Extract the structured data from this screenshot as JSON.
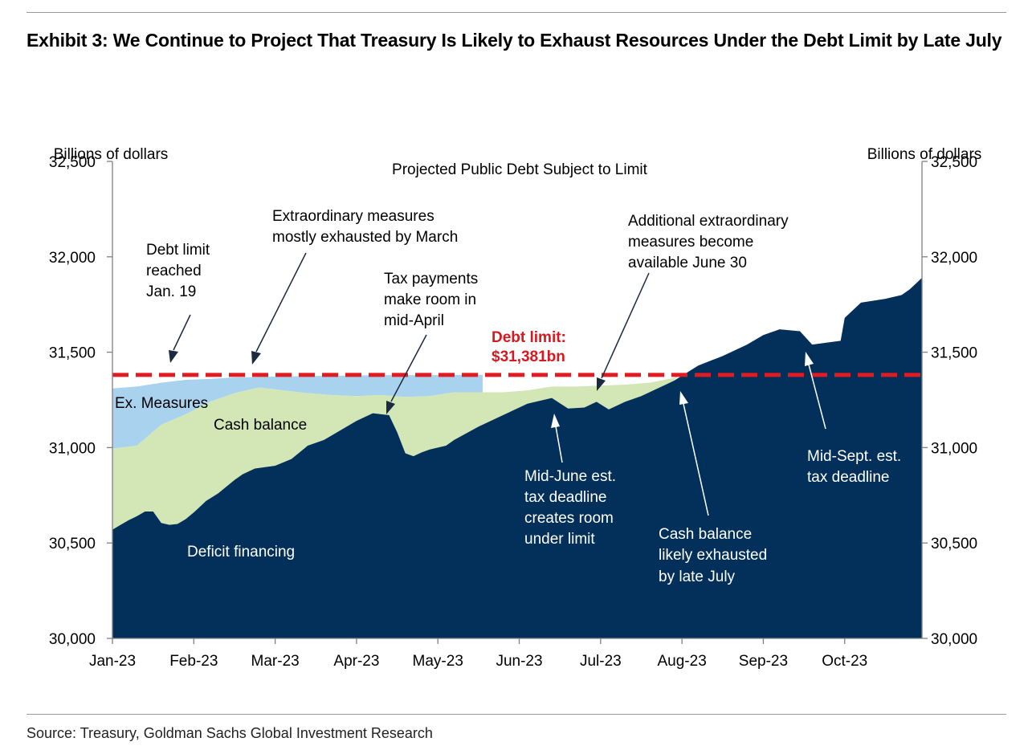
{
  "exhibit_title": "Exhibit 3: We Continue to Project That Treasury Is Likely to Exhaust Resources Under the Debt Limit by Late July",
  "source": "Source: Treasury, Goldman Sachs Global Investment Research",
  "colors": {
    "deficit": "#03305a",
    "cash": "#d2e7b5",
    "ex_measures": "#a9d2ef",
    "limit_line": "#e01b22",
    "limit_label": "#d7191f",
    "axis": "#808080"
  },
  "chart_data": {
    "type": "area",
    "title": "Projected Public Debt Subject to Limit",
    "ylabel_left": "Billions of dollars",
    "ylabel_right": "Billions of dollars",
    "ylim": [
      30000,
      32500
    ],
    "y_ticks": [
      30000,
      30500,
      31000,
      31500,
      32000,
      32500
    ],
    "y_tick_labels": [
      "30,000",
      "30,500",
      "31,000",
      "31,500",
      "32,000",
      "32,500"
    ],
    "x_tick_labels": [
      "Jan-23",
      "Feb-23",
      "Mar-23",
      "Apr-23",
      "May-23",
      "Jun-23",
      "Jul-23",
      "Aug-23",
      "Sep-23",
      "Oct-23"
    ],
    "x_unit": "months since Jan 1, 2023",
    "xlim": [
      0,
      9.95
    ],
    "debt_limit": {
      "value": 31381,
      "label_line1": "Debt limit:",
      "label_line2": "$31,381bn"
    },
    "series": [
      {
        "name": "Deficit financing",
        "x": [
          0,
          0.1,
          0.2,
          0.3,
          0.4,
          0.5,
          0.6,
          0.7,
          0.8,
          0.9,
          1.0,
          1.15,
          1.3,
          1.5,
          1.6,
          1.75,
          2.0,
          2.2,
          2.4,
          2.6,
          2.8,
          3.0,
          3.2,
          3.4,
          3.5,
          3.6,
          3.7,
          3.8,
          3.9,
          4.0,
          4.1,
          4.2,
          4.5,
          4.8,
          5.1,
          5.4,
          5.6,
          5.8,
          5.95,
          6.1,
          6.3,
          6.5,
          6.7,
          6.9,
          7.2,
          7.5,
          7.8,
          8.0,
          8.2,
          8.45,
          8.6,
          8.95,
          9.0,
          9.2,
          9.5,
          9.7,
          9.8,
          9.95
        ],
        "values": [
          30570,
          30595,
          30620,
          30640,
          30665,
          30665,
          30605,
          30595,
          30600,
          30625,
          30660,
          30720,
          30760,
          30830,
          30860,
          30890,
          30905,
          30940,
          31010,
          31040,
          31090,
          31140,
          31180,
          31170,
          31080,
          30970,
          30955,
          30975,
          30990,
          31000,
          31010,
          31040,
          31110,
          31170,
          31230,
          31260,
          31205,
          31210,
          31240,
          31200,
          31240,
          31270,
          31310,
          31350,
          31430,
          31480,
          31540,
          31590,
          31620,
          31610,
          31540,
          31560,
          31680,
          31760,
          31780,
          31800,
          31830,
          31890
        ]
      },
      {
        "name": "Cash balance",
        "x": [
          0,
          0.3,
          0.6,
          0.9,
          1.2,
          1.5,
          1.8,
          2.1,
          2.4,
          2.7,
          3.0,
          3.3,
          3.6,
          3.9,
          4.2,
          4.5,
          4.8,
          5.1,
          5.4,
          5.7,
          6.0,
          6.3,
          6.6,
          6.9,
          6.96
        ],
        "values": [
          30995,
          31010,
          31120,
          31175,
          31240,
          31285,
          31315,
          31300,
          31285,
          31275,
          31270,
          31275,
          31265,
          31270,
          31290,
          31290,
          31290,
          31300,
          31320,
          31320,
          31325,
          31330,
          31340,
          31365,
          31381
        ]
      },
      {
        "name": "Ex. Measures",
        "x": [
          0,
          0.3,
          0.6,
          0.9,
          1.2,
          1.5,
          1.8,
          2.1,
          2.4,
          2.7,
          3.0,
          3.3,
          3.6,
          3.9,
          4.2,
          4.5,
          4.55
        ],
        "values": [
          31310,
          31320,
          31340,
          31355,
          31360,
          31368,
          31370,
          31373,
          31375,
          31376,
          31378,
          31380,
          31380,
          31380,
          31381,
          31381,
          31381
        ]
      }
    ],
    "area_labels": [
      {
        "text": "Ex. Measures"
      },
      {
        "text": "Cash balance"
      },
      {
        "text": "Deficit financing"
      }
    ],
    "annotations": [
      {
        "lines": [
          "Debt limit",
          "reached",
          "Jan. 19"
        ]
      },
      {
        "lines": [
          "Extraordinary measures",
          "mostly exhausted by March"
        ]
      },
      {
        "lines": [
          "Tax payments",
          "make room in",
          "mid-April"
        ]
      },
      {
        "lines": [
          "Additional extraordinary",
          "measures become",
          "available June 30"
        ]
      },
      {
        "lines": [
          "Mid-June est.",
          "tax deadline",
          "creates room",
          "under limit"
        ]
      },
      {
        "lines": [
          "Cash balance",
          "likely exhausted",
          "by late July"
        ]
      },
      {
        "lines": [
          "Mid-Sept. est.",
          "tax deadline"
        ]
      }
    ]
  }
}
